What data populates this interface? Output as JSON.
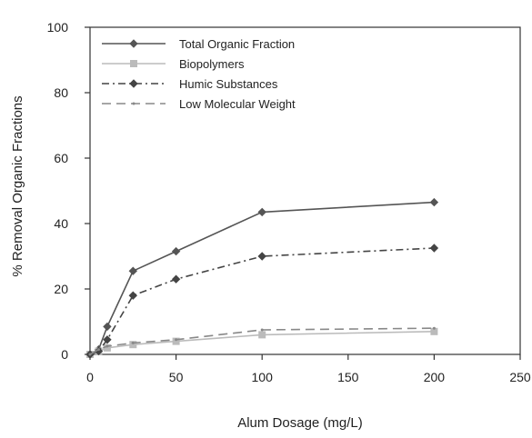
{
  "chart_data": {
    "type": "line",
    "title": "",
    "xlabel": "Alum Dosage (mg/L)",
    "ylabel": "% Removal Organic Fractions",
    "xlim": [
      0,
      250
    ],
    "ylim": [
      0,
      100
    ],
    "xticks": [
      0,
      50,
      100,
      150,
      200,
      250
    ],
    "yticks": [
      0,
      20,
      40,
      60,
      80,
      100
    ],
    "x_tick_labels": [
      "0",
      "50",
      "100",
      "150",
      "200",
      "250"
    ],
    "y_tick_labels": [
      "0",
      "20",
      "40",
      "60",
      "80",
      "100"
    ],
    "grid": false,
    "legend_position": "top-left",
    "series": [
      {
        "name": "Total Organic Fraction",
        "color": "#555555",
        "marker": "diamond",
        "dash": "solid",
        "x": [
          0,
          5,
          10,
          25,
          50,
          100,
          200
        ],
        "y": [
          0,
          1.5,
          8.5,
          25.5,
          31.5,
          43.5,
          46.5
        ]
      },
      {
        "name": "Biopolymers",
        "color": "#bbbbbb",
        "marker": "square",
        "dash": "solid",
        "x": [
          0,
          5,
          10,
          25,
          50,
          100,
          200
        ],
        "y": [
          0,
          1,
          2,
          3,
          4,
          6,
          7
        ]
      },
      {
        "name": "Humic Substances",
        "color": "#444444",
        "marker": "diamond",
        "dash": "dashdot",
        "x": [
          0,
          5,
          10,
          25,
          50,
          100,
          200
        ],
        "y": [
          0,
          1,
          4.5,
          18,
          23,
          30,
          32.5
        ]
      },
      {
        "name": "Low Molecular Weight",
        "color": "#888888",
        "marker": "none",
        "dash": "dashed",
        "x": [
          0,
          5,
          10,
          25,
          50,
          100,
          200
        ],
        "y": [
          0,
          1.5,
          2.5,
          3.5,
          4.5,
          7.5,
          8
        ]
      }
    ]
  }
}
